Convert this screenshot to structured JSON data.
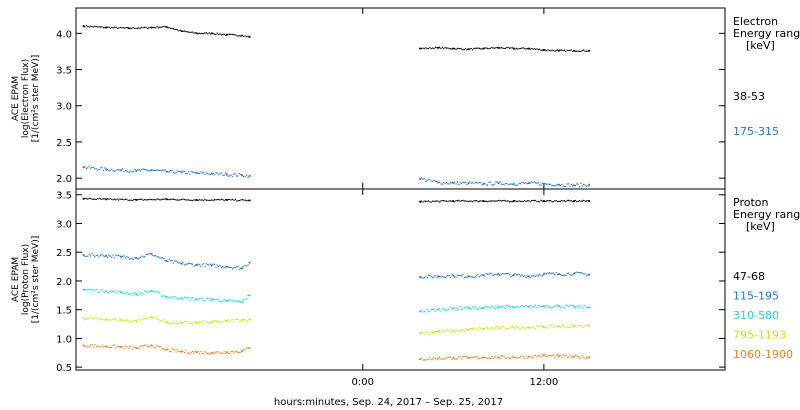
{
  "chart_data": [
    {
      "type": "scatter",
      "panel": "electron",
      "ylabel": [
        "ACE EPAM",
        "log(Electron Flux)",
        "[1/(cm²s ster MeV)]"
      ],
      "ylim": [
        1.85,
        4.35
      ],
      "yticks": [
        2.0,
        2.5,
        3.0,
        3.5,
        4.0
      ],
      "ytick_labels": [
        "2.0",
        "2.5",
        "3.0",
        "3.5",
        "4.0"
      ],
      "legend_title": [
        "Electron",
        "Energy ranges",
        "[keV]"
      ],
      "series": [
        {
          "name": "38-53",
          "color": "#000000",
          "segments": [
            {
              "x": [
                -18.5,
                -17,
                -15.5,
                -14,
                -13,
                -12,
                -11,
                -10,
                -9,
                -8,
                -7.5
              ],
              "y": [
                4.1,
                4.08,
                4.07,
                4.08,
                4.09,
                4.03,
                4.0,
                4.0,
                3.98,
                3.97,
                3.95
              ]
            },
            {
              "x": [
                3.8,
                5,
                6,
                7,
                8,
                9,
                10,
                11,
                12,
                13,
                14,
                15
              ],
              "y": [
                3.79,
                3.8,
                3.79,
                3.78,
                3.79,
                3.8,
                3.79,
                3.79,
                3.77,
                3.76,
                3.76,
                3.76
              ]
            }
          ]
        },
        {
          "name": "175-315",
          "color": "#1f77c8",
          "segments": [
            {
              "x": [
                -18.5,
                -17,
                -16,
                -15,
                -14,
                -13,
                -12,
                -11,
                -10,
                -9,
                -8,
                -7.5
              ],
              "y": [
                2.15,
                2.12,
                2.11,
                2.1,
                2.11,
                2.09,
                2.08,
                2.07,
                2.06,
                2.05,
                2.04,
                2.03
              ]
            },
            {
              "x": [
                3.8,
                5,
                6,
                7,
                8,
                9,
                10,
                11,
                12,
                13,
                14,
                15
              ],
              "y": [
                1.99,
                1.94,
                1.93,
                1.93,
                1.92,
                1.93,
                1.92,
                1.93,
                1.92,
                1.91,
                1.9,
                1.91
              ]
            }
          ]
        }
      ]
    },
    {
      "type": "scatter",
      "panel": "proton",
      "ylabel": [
        "ACE EPAM",
        "log(Proton Flux)",
        "[1/(cm²s ster MeV)]"
      ],
      "ylim": [
        0.45,
        3.6
      ],
      "yticks": [
        0.5,
        1.0,
        1.5,
        2.0,
        2.5,
        3.0,
        3.5
      ],
      "ytick_labels": [
        "0.5",
        "1.0",
        "1.5",
        "2.0",
        "2.5",
        "3.0",
        "3.5"
      ],
      "legend_title": [
        "Proton",
        "Energy ranges",
        "[keV]"
      ],
      "series": [
        {
          "name": "47-68",
          "color": "#000000",
          "segments": [
            {
              "x": [
                -18.5,
                -17,
                -15,
                -13,
                -11,
                -9,
                -7.5
              ],
              "y": [
                3.43,
                3.42,
                3.41,
                3.42,
                3.41,
                3.41,
                3.4
              ]
            },
            {
              "x": [
                3.8,
                6,
                8,
                10,
                12,
                14,
                15
              ],
              "y": [
                3.38,
                3.39,
                3.39,
                3.39,
                3.39,
                3.39,
                3.39
              ]
            }
          ]
        },
        {
          "name": "115-195",
          "color": "#1f77c8",
          "segments": [
            {
              "x": [
                -18.5,
                -17,
                -16,
                -15,
                -14,
                -13,
                -12,
                -11,
                -10,
                -9,
                -8,
                -7.5
              ],
              "y": [
                2.45,
                2.44,
                2.42,
                2.4,
                2.47,
                2.35,
                2.3,
                2.28,
                2.27,
                2.25,
                2.22,
                2.32
              ]
            },
            {
              "x": [
                3.8,
                5,
                6,
                7,
                8,
                9,
                10,
                11,
                12,
                13,
                14,
                15
              ],
              "y": [
                2.07,
                2.08,
                2.09,
                2.08,
                2.1,
                2.12,
                2.1,
                2.08,
                2.12,
                2.12,
                2.13,
                2.11
              ]
            }
          ]
        },
        {
          "name": "310-580",
          "color": "#21d4d4",
          "segments": [
            {
              "x": [
                -18.5,
                -17,
                -16,
                -15,
                -14,
                -13,
                -12,
                -11,
                -10,
                -9,
                -8,
                -7.5
              ],
              "y": [
                1.85,
                1.82,
                1.8,
                1.77,
                1.83,
                1.72,
                1.7,
                1.68,
                1.68,
                1.65,
                1.63,
                1.75
              ]
            },
            {
              "x": [
                3.8,
                5,
                6,
                7,
                8,
                9,
                10,
                11,
                12,
                13,
                14,
                15
              ],
              "y": [
                1.47,
                1.5,
                1.52,
                1.53,
                1.53,
                1.55,
                1.54,
                1.55,
                1.56,
                1.56,
                1.55,
                1.54
              ]
            }
          ]
        },
        {
          "name": "795-1193",
          "color": "#c8e600",
          "segments": [
            {
              "x": [
                -18.5,
                -17,
                -16,
                -15,
                -14,
                -13,
                -12,
                -11,
                -10,
                -9,
                -8,
                -7.5
              ],
              "y": [
                1.35,
                1.33,
                1.32,
                1.3,
                1.37,
                1.28,
                1.27,
                1.27,
                1.28,
                1.3,
                1.32,
                1.33
              ]
            },
            {
              "x": [
                3.8,
                5,
                6,
                7,
                8,
                9,
                10,
                11,
                12,
                13,
                14,
                15
              ],
              "y": [
                1.09,
                1.12,
                1.13,
                1.15,
                1.17,
                1.18,
                1.19,
                1.19,
                1.2,
                1.21,
                1.21,
                1.22
              ]
            }
          ]
        },
        {
          "name": "1060-1900",
          "color": "#e8821e",
          "segments": [
            {
              "x": [
                -18.5,
                -17,
                -16,
                -15,
                -14,
                -13,
                -12,
                -11,
                -10,
                -9,
                -8,
                -7.5
              ],
              "y": [
                0.88,
                0.86,
                0.85,
                0.83,
                0.88,
                0.8,
                0.77,
                0.76,
                0.75,
                0.76,
                0.78,
                0.83
              ]
            },
            {
              "x": [
                3.8,
                5,
                6,
                7,
                8,
                9,
                10,
                11,
                12,
                13,
                14,
                15
              ],
              "y": [
                0.64,
                0.65,
                0.66,
                0.66,
                0.67,
                0.67,
                0.67,
                0.68,
                0.7,
                0.69,
                0.68,
                0.67
              ]
            }
          ]
        }
      ]
    }
  ],
  "x_axis": {
    "unit": "hours relative to Sep. 25, 2017 00:00",
    "xlim": [
      -19,
      24
    ],
    "ticks": [
      0,
      12
    ],
    "tick_labels": [
      "0:00",
      "12:00"
    ],
    "label": "hours:minutes, Sep. 24, 2017 – Sep. 25, 2017"
  }
}
